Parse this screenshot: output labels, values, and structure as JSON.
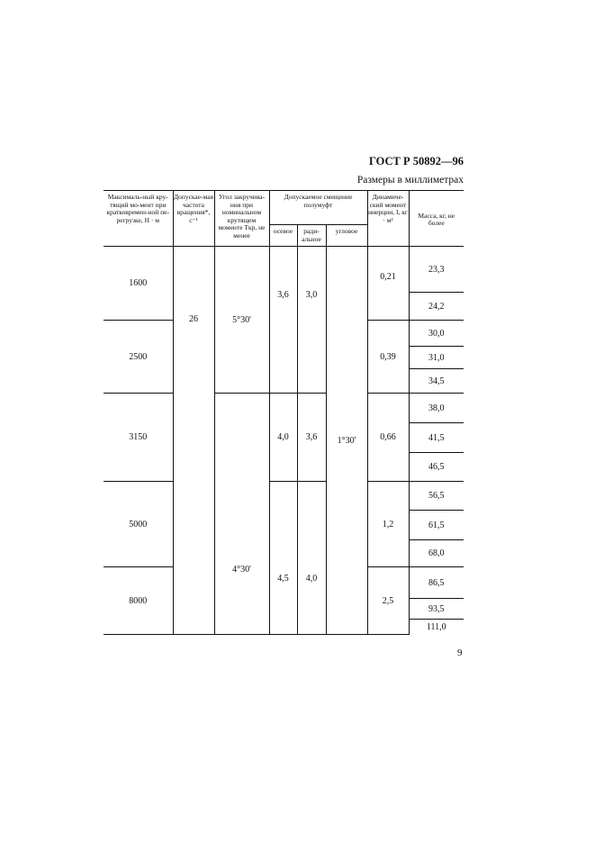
{
  "header": {
    "doc_code": "ГОСТ Р 50892—96",
    "units_note": "Размеры в миллиметрах"
  },
  "table": {
    "columns": {
      "max_torque": "Максималь-ный кру-тящий мо-мент при кратковремен-ной пе-регрузке, Н · м",
      "speed": "Допускае-мая частота вращения*, с⁻¹",
      "twist_angle": "Угол закручива-ния при номинальном крутящем моменте Tкр, не менее",
      "offset_group": "Допускаемое смещение полумуфт",
      "axial": "осевое",
      "radial": "ради-альное",
      "angular": "угловое",
      "inertia": "Динамиче-ский момент инерции, I, кг · м²",
      "mass": "Масса, кг, не более"
    },
    "max_torque": [
      "1600",
      "2500",
      "3150",
      "5000",
      "8000"
    ],
    "speed": "26",
    "twist_angle": [
      "5°30'",
      "4°30'"
    ],
    "axial": [
      "3,6",
      "4,0",
      "4,5"
    ],
    "radial": [
      "3,0",
      "3,6",
      "4,0"
    ],
    "angular": "1°30'",
    "inertia": [
      "0,21",
      "0,39",
      "0,66",
      "1,2",
      "2,5"
    ],
    "mass": [
      "23,3",
      "24,2",
      "30,0",
      "31,0",
      "34,5",
      "38,0",
      "41,5",
      "46,5",
      "56,5",
      "61,5",
      "68,0",
      "86,5",
      "93,5",
      "111,0"
    ]
  },
  "footer": {
    "page_number": "9"
  }
}
